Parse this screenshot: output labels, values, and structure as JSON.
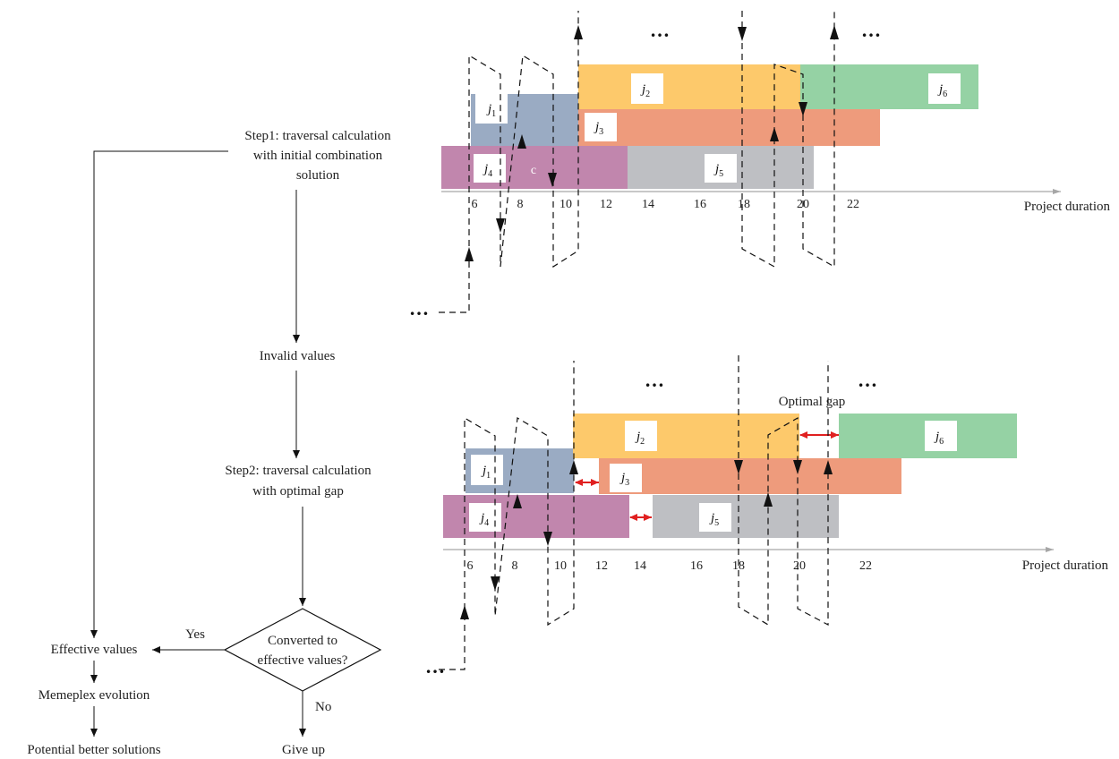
{
  "flow": {
    "step1": [
      "Step1: traversal calculation",
      "with initial combination",
      "solution"
    ],
    "invalid": "Invalid values",
    "step2": [
      "Step2: traversal calculation",
      "with optimal gap"
    ],
    "decision": [
      "Converted to",
      "effective values?"
    ],
    "yes": "Yes",
    "no": "No",
    "effective": "Effective values",
    "memeplex": "Memeplex evolution",
    "potential": "Potential better solutions",
    "giveup": "Give up"
  },
  "colors": {
    "j1": "#9aabc3",
    "j2": "#fdc96b",
    "j3": "#ee9b7c",
    "j4": "#c186ad",
    "j5": "#bebfc3",
    "j6": "#95d2a4",
    "gap_arrow": "#e02020",
    "axis": "#a6a6a6"
  },
  "top": {
    "axis_label": "Project duration",
    "ticks": [
      "6",
      "8",
      "10",
      "12",
      "14",
      "16",
      "18",
      "20",
      "22"
    ],
    "extra_label": "c",
    "ellipses": [
      "…",
      "…",
      "…"
    ]
  },
  "bottom": {
    "axis_label": "Project duration",
    "ticks": [
      "6",
      "8",
      "10",
      "12",
      "14",
      "16",
      "18",
      "20",
      "22"
    ],
    "optimal_gap": "Optimal gap",
    "ellipses": [
      "…",
      "…",
      "…"
    ]
  },
  "jobs": [
    {
      "id": "j1",
      "base": "j",
      "sub": "1"
    },
    {
      "id": "j2",
      "base": "j",
      "sub": "2"
    },
    {
      "id": "j3",
      "base": "j",
      "sub": "3"
    },
    {
      "id": "j4",
      "base": "j",
      "sub": "4"
    },
    {
      "id": "j5",
      "base": "j",
      "sub": "5"
    },
    {
      "id": "j6",
      "base": "j",
      "sub": "6"
    }
  ]
}
